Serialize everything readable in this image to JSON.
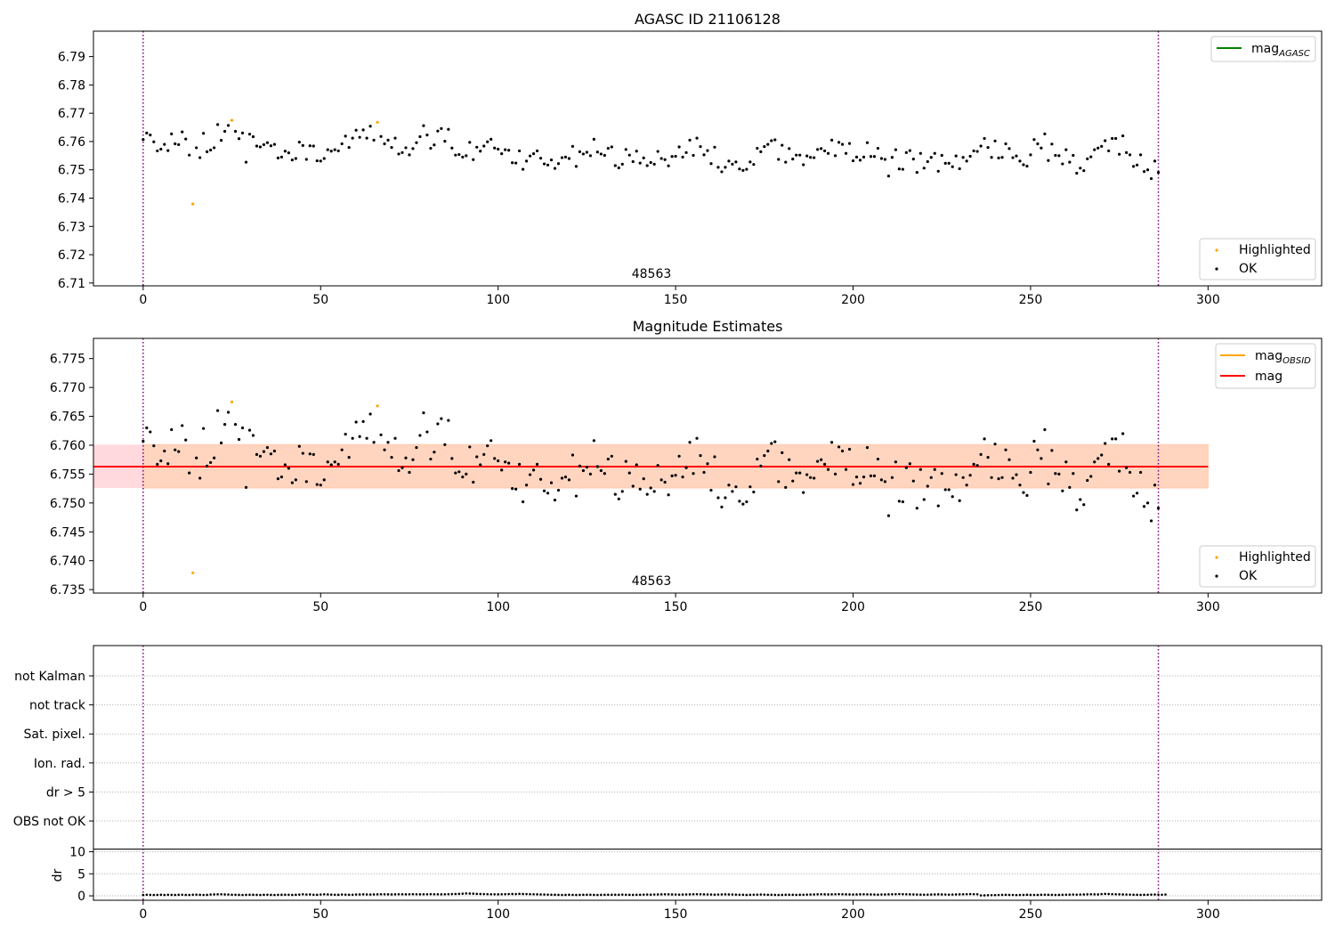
{
  "chart_data": [
    {
      "type": "scatter",
      "title": "AGASC ID 21106128",
      "xlim": [
        -14,
        332
      ],
      "ylim": [
        6.709,
        6.799
      ],
      "xticks": [
        0,
        50,
        100,
        150,
        200,
        250,
        300
      ],
      "yticks": [
        6.71,
        6.72,
        6.73,
        6.74,
        6.75,
        6.76,
        6.77,
        6.78,
        6.79
      ],
      "vlines": [
        0,
        286
      ],
      "annotation": "48563",
      "legend_lines": [
        {
          "label": "mag",
          "sub": "AGASC",
          "color": "#008000"
        }
      ],
      "legend_points": [
        {
          "label": "Highlighted",
          "color": "#ffa500"
        },
        {
          "label": "OK",
          "color": "#000000"
        }
      ]
    },
    {
      "type": "scatter",
      "title": "Magnitude Estimates",
      "xlim": [
        -14,
        332
      ],
      "ylim": [
        6.7344,
        6.7785
      ],
      "xticks": [
        0,
        50,
        100,
        150,
        200,
        250,
        300
      ],
      "yticks": [
        6.735,
        6.74,
        6.745,
        6.75,
        6.755,
        6.76,
        6.765,
        6.77,
        6.775
      ],
      "vlines": [
        0,
        286
      ],
      "annotation": "48563",
      "mean_mag": 6.7563,
      "band_outer": [
        6.7526,
        6.7601
      ],
      "band_inner": [
        6.7526,
        6.7601
      ],
      "band_xrange": [
        -14,
        300
      ],
      "band_inner_xrange": [
        0,
        300
      ],
      "legend_lines": [
        {
          "label": "mag",
          "sub": "OBSID",
          "color": "#ffa500"
        },
        {
          "label": "mag",
          "sub": "",
          "color": "#ff0000"
        }
      ],
      "legend_points": [
        {
          "label": "Highlighted",
          "color": "#ffa500"
        },
        {
          "label": "OK",
          "color": "#000000"
        }
      ]
    },
    {
      "type": "scatter",
      "xlim": [
        -14,
        332
      ],
      "xticks": [
        0,
        50,
        100,
        150,
        200,
        250,
        300
      ],
      "vlines": [
        0,
        286
      ],
      "flag_labels": [
        "not Kalman",
        "not track",
        "Sat. pixel.",
        "Ion. rad.",
        "dr > 5",
        "OBS not OK"
      ],
      "dr_ylabel": "dr",
      "dr_yticks": [
        0,
        5,
        10
      ],
      "dr_ylim": [
        -1,
        10.6
      ]
    }
  ],
  "series": {
    "ok_points": [
      [
        0,
        6.7607
      ],
      [
        1,
        6.763
      ],
      [
        2,
        6.7623
      ],
      [
        3,
        6.7599
      ],
      [
        4,
        6.7567
      ],
      [
        5,
        6.7573
      ],
      [
        6,
        6.759
      ],
      [
        7,
        6.7568
      ],
      [
        8,
        6.7627
      ],
      [
        9,
        6.7592
      ],
      [
        10,
        6.7589
      ],
      [
        11,
        6.7634
      ],
      [
        12,
        6.7609
      ],
      [
        13,
        6.7552
      ],
      [
        15,
        6.7578
      ],
      [
        16,
        6.7543
      ],
      [
        17,
        6.7629
      ],
      [
        18,
        6.7564
      ],
      [
        19,
        6.757
      ],
      [
        20,
        6.7578
      ],
      [
        21,
        6.766
      ],
      [
        22,
        6.7604
      ],
      [
        23,
        6.7636
      ],
      [
        24,
        6.7657
      ],
      [
        26,
        6.7636
      ],
      [
        27,
        6.761
      ],
      [
        28,
        6.763
      ],
      [
        29,
        6.7527
      ],
      [
        30,
        6.7626
      ],
      [
        31,
        6.7617
      ],
      [
        32,
        6.7584
      ],
      [
        33,
        6.7581
      ],
      [
        34,
        6.7589
      ],
      [
        35,
        6.7596
      ],
      [
        36,
        6.7585
      ],
      [
        37,
        6.759
      ],
      [
        38,
        6.7542
      ],
      [
        39,
        6.7545
      ],
      [
        40,
        6.7566
      ],
      [
        41,
        6.756
      ],
      [
        42,
        6.7535
      ],
      [
        43,
        6.754
      ],
      [
        44,
        6.7598
      ],
      [
        45,
        6.7586
      ],
      [
        46,
        6.7537
      ],
      [
        47,
        6.7585
      ],
      [
        48,
        6.7584
      ],
      [
        49,
        6.7532
      ],
      [
        50,
        6.7531
      ],
      [
        51,
        6.754
      ],
      [
        52,
        6.7571
      ],
      [
        53,
        6.7566
      ],
      [
        54,
        6.7571
      ],
      [
        55,
        6.7567
      ],
      [
        56,
        6.7592
      ],
      [
        57,
        6.7619
      ],
      [
        58,
        6.7579
      ],
      [
        59,
        6.7612
      ],
      [
        60,
        6.764
      ],
      [
        61,
        6.7615
      ],
      [
        62,
        6.7641
      ],
      [
        63,
        6.7612
      ],
      [
        64,
        6.7654
      ],
      [
        65,
        6.7605
      ],
      [
        67,
        6.7618
      ],
      [
        68,
        6.7592
      ],
      [
        69,
        6.7605
      ],
      [
        70,
        6.7579
      ],
      [
        71,
        6.7612
      ],
      [
        72,
        6.7556
      ],
      [
        73,
        6.7561
      ],
      [
        74,
        6.7578
      ],
      [
        75,
        6.7553
      ],
      [
        76,
        6.7575
      ],
      [
        77,
        6.7596
      ],
      [
        78,
        6.7617
      ],
      [
        79,
        6.7656
      ],
      [
        80,
        6.7623
      ],
      [
        81,
        6.7576
      ],
      [
        82,
        6.7588
      ],
      [
        83,
        6.7637
      ],
      [
        84,
        6.7646
      ],
      [
        85,
        6.7601
      ],
      [
        86,
        6.7643
      ],
      [
        87,
        6.7577
      ],
      [
        88,
        6.7552
      ],
      [
        89,
        6.7554
      ],
      [
        90,
        6.7545
      ],
      [
        91,
        6.755
      ],
      [
        92,
        6.7597
      ],
      [
        93,
        6.7536
      ],
      [
        94,
        6.758
      ],
      [
        95,
        6.7566
      ],
      [
        96,
        6.7584
      ],
      [
        97,
        6.7599
      ],
      [
        98,
        6.7608
      ],
      [
        99,
        6.7577
      ],
      [
        100,
        6.7573
      ],
      [
        101,
        6.7557
      ],
      [
        102,
        6.7571
      ],
      [
        103,
        6.7569
      ],
      [
        104,
        6.7525
      ],
      [
        105,
        6.7524
      ],
      [
        106,
        6.7567
      ],
      [
        107,
        6.7502
      ],
      [
        108,
        6.7531
      ],
      [
        109,
        6.7549
      ],
      [
        110,
        6.7557
      ],
      [
        111,
        6.7567
      ],
      [
        112,
        6.7541
      ],
      [
        113,
        6.7521
      ],
      [
        114,
        6.7517
      ],
      [
        115,
        6.7535
      ],
      [
        116,
        6.7505
      ],
      [
        117,
        6.7522
      ],
      [
        118,
        6.7543
      ],
      [
        119,
        6.7545
      ],
      [
        120,
        6.754
      ],
      [
        121,
        6.7583
      ],
      [
        122,
        6.7512
      ],
      [
        123,
        6.7564
      ],
      [
        124,
        6.7556
      ],
      [
        125,
        6.7562
      ],
      [
        126,
        6.755
      ],
      [
        127,
        6.7608
      ],
      [
        128,
        6.7563
      ],
      [
        129,
        6.7556
      ],
      [
        130,
        6.7551
      ],
      [
        131,
        6.7576
      ],
      [
        132,
        6.7581
      ],
      [
        133,
        6.7515
      ],
      [
        134,
        6.7507
      ],
      [
        135,
        6.752
      ],
      [
        136,
        6.7572
      ],
      [
        137,
        6.7552
      ],
      [
        138,
        6.7529
      ],
      [
        139,
        6.7566
      ],
      [
        140,
        6.7524
      ],
      [
        141,
        6.7542
      ],
      [
        142,
        6.7515
      ],
      [
        143,
        6.7526
      ],
      [
        144,
        6.752
      ],
      [
        145,
        6.7565
      ],
      [
        146,
        6.754
      ],
      [
        147,
        6.7536
      ],
      [
        148,
        6.7514
      ],
      [
        149,
        6.7547
      ],
      [
        150,
        6.7548
      ],
      [
        151,
        6.7581
      ],
      [
        152,
        6.7545
      ],
      [
        153,
        6.7561
      ],
      [
        154,
        6.7605
      ],
      [
        155,
        6.7551
      ],
      [
        156,
        6.7612
      ],
      [
        157,
        6.7582
      ],
      [
        158,
        6.7553
      ],
      [
        159,
        6.7568
      ],
      [
        160,
        6.7522
      ],
      [
        161,
        6.758
      ],
      [
        162,
        6.7509
      ],
      [
        163,
        6.7493
      ],
      [
        164,
        6.7509
      ],
      [
        165,
        6.7531
      ],
      [
        166,
        6.752
      ],
      [
        167,
        6.7528
      ],
      [
        168,
        6.7503
      ],
      [
        169,
        6.7498
      ],
      [
        170,
        6.7502
      ],
      [
        171,
        6.7528
      ],
      [
        172,
        6.7519
      ],
      [
        173,
        6.7576
      ],
      [
        174,
        6.7564
      ],
      [
        175,
        6.7582
      ],
      [
        176,
        6.759
      ],
      [
        177,
        6.7603
      ],
      [
        178,
        6.7606
      ],
      [
        179,
        6.7537
      ],
      [
        180,
        6.7587
      ],
      [
        181,
        6.7527
      ],
      [
        182,
        6.7575
      ],
      [
        183,
        6.7538
      ],
      [
        184,
        6.7552
      ],
      [
        185,
        6.7552
      ],
      [
        186,
        6.7518
      ],
      [
        187,
        6.7549
      ],
      [
        188,
        6.7544
      ],
      [
        189,
        6.7543
      ],
      [
        190,
        6.7572
      ],
      [
        191,
        6.7575
      ],
      [
        192,
        6.7567
      ],
      [
        193,
        6.7558
      ],
      [
        194,
        6.7605
      ],
      [
        195,
        6.755
      ],
      [
        196,
        6.7597
      ],
      [
        197,
        6.759
      ],
      [
        198,
        6.7558
      ],
      [
        199,
        6.7593
      ],
      [
        200,
        6.7532
      ],
      [
        201,
        6.7545
      ],
      [
        202,
        6.7534
      ],
      [
        203,
        6.7545
      ],
      [
        204,
        6.7596
      ],
      [
        205,
        6.7547
      ],
      [
        206,
        6.7547
      ],
      [
        207,
        6.7576
      ],
      [
        208,
        6.754
      ],
      [
        209,
        6.7537
      ],
      [
        210,
        6.7478
      ],
      [
        211,
        6.7544
      ],
      [
        212,
        6.7571
      ],
      [
        213,
        6.7503
      ],
      [
        214,
        6.7502
      ],
      [
        215,
        6.7561
      ],
      [
        216,
        6.7568
      ],
      [
        217,
        6.7538
      ],
      [
        218,
        6.7491
      ],
      [
        219,
        6.7558
      ],
      [
        220,
        6.7506
      ],
      [
        221,
        6.7529
      ],
      [
        222,
        6.7544
      ],
      [
        223,
        6.7558
      ],
      [
        224,
        6.7495
      ],
      [
        225,
        6.7551
      ],
      [
        226,
        6.7523
      ],
      [
        227,
        6.7523
      ],
      [
        228,
        6.7511
      ],
      [
        229,
        6.7549
      ],
      [
        230,
        6.7504
      ],
      [
        231,
        6.7544
      ],
      [
        232,
        6.7531
      ],
      [
        233,
        6.7548
      ],
      [
        234,
        6.7567
      ],
      [
        235,
        6.7565
      ],
      [
        236,
        6.7584
      ],
      [
        237,
        6.7611
      ],
      [
        238,
        6.7579
      ],
      [
        239,
        6.7544
      ],
      [
        240,
        6.7602
      ],
      [
        241,
        6.7542
      ],
      [
        242,
        6.7544
      ],
      [
        243,
        6.7592
      ],
      [
        244,
        6.7575
      ],
      [
        245,
        6.7543
      ],
      [
        246,
        6.7549
      ],
      [
        247,
        6.7531
      ],
      [
        248,
        6.7518
      ],
      [
        249,
        6.7513
      ],
      [
        250,
        6.7553
      ],
      [
        251,
        6.7607
      ],
      [
        252,
        6.7592
      ],
      [
        253,
        6.7577
      ],
      [
        254,
        6.7627
      ],
      [
        255,
        6.7533
      ],
      [
        256,
        6.7591
      ],
      [
        257,
        6.7551
      ],
      [
        258,
        6.755
      ],
      [
        259,
        6.7521
      ],
      [
        260,
        6.7571
      ],
      [
        261,
        6.7527
      ],
      [
        262,
        6.7551
      ],
      [
        263,
        6.7488
      ],
      [
        264,
        6.7506
      ],
      [
        265,
        6.7497
      ],
      [
        266,
        6.7539
      ],
      [
        267,
        6.7546
      ],
      [
        268,
        6.7571
      ],
      [
        269,
        6.7577
      ],
      [
        270,
        6.7583
      ],
      [
        271,
        6.7603
      ],
      [
        272,
        6.7567
      ],
      [
        273,
        6.7611
      ],
      [
        274,
        6.7611
      ],
      [
        275,
        6.7555
      ],
      [
        276,
        6.762
      ],
      [
        277,
        6.7561
      ],
      [
        278,
        6.7553
      ],
      [
        279,
        6.7512
      ],
      [
        280,
        6.7517
      ],
      [
        281,
        6.7553
      ],
      [
        282,
        6.7494
      ],
      [
        283,
        6.75
      ],
      [
        284,
        6.7469
      ],
      [
        285,
        6.7531
      ],
      [
        286,
        6.7491
      ]
    ],
    "highlighted_points": [
      [
        14,
        6.7379
      ],
      [
        25,
        6.7675
      ],
      [
        66,
        6.7668
      ]
    ],
    "dr_values": [
      0.2,
      0.25,
      0.22,
      0.2,
      0.22,
      0.24,
      0.2,
      0.25,
      0.22,
      0.2,
      0.24,
      0.26,
      0.22,
      0.2,
      0.25,
      0.28,
      0.24,
      0.2,
      0.22,
      0.3,
      0.32,
      0.35,
      0.36,
      0.32,
      0.3,
      0.26,
      0.24,
      0.22,
      0.2,
      0.22,
      0.25,
      0.24,
      0.22,
      0.2,
      0.24,
      0.25,
      0.22,
      0.2,
      0.22,
      0.24,
      0.26,
      0.25,
      0.22,
      0.24,
      0.28,
      0.35,
      0.3,
      0.32,
      0.26,
      0.24,
      0.3,
      0.36,
      0.32,
      0.28,
      0.26,
      0.24,
      0.3,
      0.28,
      0.26,
      0.25,
      0.3,
      0.32,
      0.34,
      0.32,
      0.3,
      0.32,
      0.34,
      0.36,
      0.35,
      0.34,
      0.32,
      0.34,
      0.36,
      0.35,
      0.34,
      0.36,
      0.38,
      0.36,
      0.34,
      0.35,
      0.36,
      0.38,
      0.36,
      0.35,
      0.34,
      0.36,
      0.38,
      0.4,
      0.42,
      0.45,
      0.5,
      0.55,
      0.52,
      0.5,
      0.45,
      0.42,
      0.4,
      0.38,
      0.36,
      0.35,
      0.34,
      0.36,
      0.38,
      0.4,
      0.42,
      0.4,
      0.45,
      0.42,
      0.4,
      0.38,
      0.36,
      0.34,
      0.32,
      0.3,
      0.28,
      0.26,
      0.24,
      0.22,
      0.2,
      0.22,
      0.24,
      0.22,
      0.2,
      0.22,
      0.24,
      0.26,
      0.24,
      0.22,
      0.2,
      0.22,
      0.24,
      0.26,
      0.24,
      0.25,
      0.26,
      0.28,
      0.26,
      0.24,
      0.22,
      0.24,
      0.26,
      0.28,
      0.3,
      0.28,
      0.3,
      0.32,
      0.34,
      0.36,
      0.34,
      0.32,
      0.3,
      0.28,
      0.3,
      0.32,
      0.34,
      0.36,
      0.38,
      0.36,
      0.34,
      0.32,
      0.3,
      0.28,
      0.3,
      0.32,
      0.34,
      0.32,
      0.3,
      0.28,
      0.26,
      0.24,
      0.22,
      0.24,
      0.26,
      0.28,
      0.3,
      0.28,
      0.26,
      0.24,
      0.22,
      0.2,
      0.22,
      0.24,
      0.26,
      0.24,
      0.22,
      0.24,
      0.26,
      0.28,
      0.3,
      0.32,
      0.34,
      0.36,
      0.34,
      0.32,
      0.34,
      0.36,
      0.38,
      0.36,
      0.34,
      0.32,
      0.3,
      0.32,
      0.34,
      0.36,
      0.34,
      0.32,
      0.3,
      0.28,
      0.3,
      0.32,
      0.34,
      0.36,
      0.38,
      0.4,
      0.38,
      0.36,
      0.34,
      0.32,
      0.3,
      0.28,
      0.26,
      0.28,
      0.3,
      0.32,
      0.34,
      0.32,
      0.3,
      0.28,
      0.3,
      0.32,
      0.34,
      0.36,
      0.38,
      0.4,
      0.38,
      0.36,
      0.1,
      0.12,
      0.14,
      0.16,
      0.18,
      0.2,
      0.22,
      0.24,
      0.22,
      0.2,
      0.18,
      0.2,
      0.22,
      0.24,
      0.22,
      0.2,
      0.22,
      0.24,
      0.26,
      0.24,
      0.22,
      0.2,
      0.22,
      0.24,
      0.26,
      0.28,
      0.3,
      0.28,
      0.3,
      0.32,
      0.34,
      0.36,
      0.34,
      0.32,
      0.4,
      0.45,
      0.42,
      0.38,
      0.36,
      0.34,
      0.32,
      0.3,
      0.28,
      0.26,
      0.24,
      0.22,
      0.24,
      0.26,
      0.28,
      0.3,
      0.28,
      0.26,
      0.3
    ]
  }
}
